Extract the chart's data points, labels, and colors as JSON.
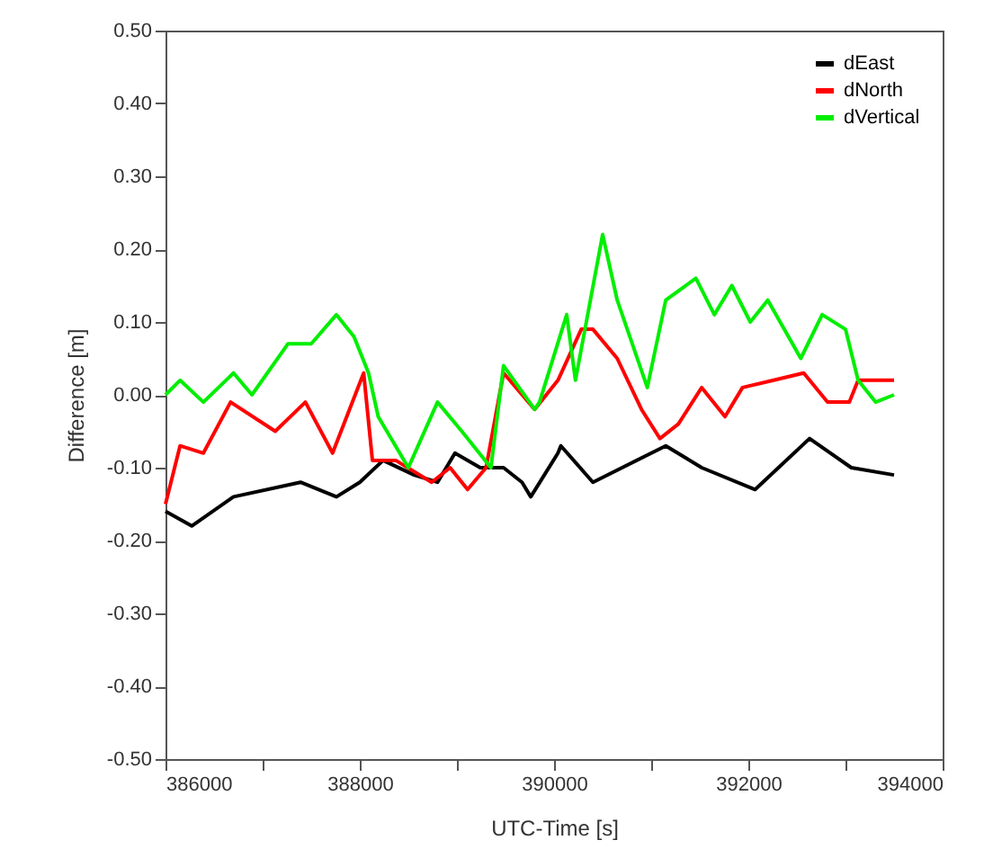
{
  "chart_data": {
    "type": "line",
    "xlabel": "UTC-Time [s]",
    "ylabel": "Difference [m]",
    "xlim": [
      386000,
      394000
    ],
    "xticks": [
      386000,
      {
        "value": 387000,
        "label": null
      },
      388000,
      {
        "value": 389000,
        "label": null
      },
      390000,
      {
        "value": 391000,
        "label": null
      },
      392000,
      {
        "value": 393000,
        "label": null
      },
      {
        "value": 394000,
        "label": "394000"
      }
    ],
    "ylim": [
      -0.5,
      0.5
    ],
    "yticks": [
      {
        "value": -0.5,
        "label": "-0.50"
      },
      {
        "value": -0.4,
        "label": "-0.40"
      },
      {
        "value": -0.3,
        "label": "-0.30"
      },
      {
        "value": -0.2,
        "label": "-0.20"
      },
      {
        "value": -0.1,
        "label": "-0.10"
      },
      {
        "value": 0,
        "label": "0.00"
      },
      {
        "value": 0.1,
        "label": "0.10"
      },
      {
        "value": 0.2,
        "label": "0.20"
      },
      {
        "value": 0.3,
        "label": "0.30"
      },
      {
        "value": 0.4,
        "label": "0.40"
      },
      {
        "value": 0.5,
        "label": "0.50"
      }
    ],
    "grid": false,
    "legend": "top right",
    "marker": "none",
    "line_style": "solid",
    "series": [
      {
        "name": "dEast",
        "color": "#000000",
        "x": [
          386000,
          386270,
          386700,
          387390,
          387760,
          388000,
          388240,
          388560,
          388800,
          388980,
          389240,
          389480,
          389670,
          389760,
          390040,
          390070,
          390400,
          391150,
          391520,
          392070,
          392630,
          393060,
          393500
        ],
        "values": [
          -0.16,
          -0.18,
          -0.14,
          -0.12,
          -0.14,
          -0.12,
          -0.09,
          -0.11,
          -0.12,
          -0.08,
          -0.1,
          -0.1,
          -0.12,
          -0.14,
          -0.08,
          -0.07,
          -0.12,
          -0.07,
          -0.1,
          -0.13,
          -0.06,
          -0.1,
          -0.11
        ]
      },
      {
        "name": "dNorth",
        "color": "#ff0000",
        "x": [
          386000,
          386150,
          386390,
          386670,
          387130,
          387440,
          387720,
          388040,
          388130,
          388370,
          388740,
          388930,
          389110,
          389300,
          389480,
          389800,
          390040,
          390280,
          390400,
          390650,
          390900,
          391090,
          391280,
          391520,
          391760,
          391940,
          392260,
          392570,
          392815,
          393040,
          393130,
          393500
        ],
        "values": [
          -0.15,
          -0.07,
          -0.08,
          -0.01,
          -0.05,
          -0.01,
          -0.08,
          0.03,
          -0.09,
          -0.09,
          -0.12,
          -0.1,
          -0.13,
          -0.1,
          0.03,
          -0.02,
          0.02,
          0.09,
          0.09,
          0.05,
          -0.02,
          -0.06,
          -0.04,
          0.01,
          -0.03,
          0.01,
          0.02,
          0.03,
          -0.01,
          -0.01,
          0.02,
          0.02
        ]
      },
      {
        "name": "dVertical",
        "color": "#00ee00",
        "x": [
          386000,
          386150,
          386390,
          386700,
          386890,
          387260,
          387500,
          387760,
          387940,
          388090,
          388190,
          388500,
          388800,
          389050,
          389350,
          389480,
          389800,
          389850,
          390130,
          390220,
          390500,
          390650,
          390960,
          391150,
          391460,
          391650,
          391830,
          392020,
          392200,
          392540,
          392760,
          393000,
          393130,
          393310,
          393500
        ],
        "values": [
          0.0,
          0.02,
          -0.01,
          0.03,
          0.0,
          0.07,
          0.07,
          0.11,
          0.08,
          0.03,
          -0.03,
          -0.1,
          -0.01,
          -0.05,
          -0.1,
          0.04,
          -0.02,
          -0.01,
          0.11,
          0.02,
          0.22,
          0.13,
          0.01,
          0.13,
          0.16,
          0.11,
          0.15,
          0.1,
          0.13,
          0.05,
          0.11,
          0.09,
          0.02,
          -0.01,
          0.0
        ]
      }
    ]
  }
}
